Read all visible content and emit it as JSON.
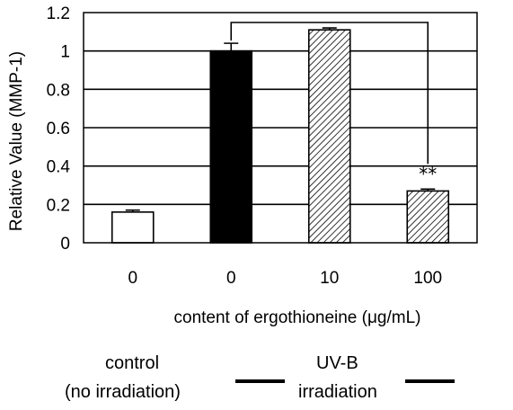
{
  "chart_data": {
    "type": "bar",
    "ylabel": "Relative Value (MMP-1)",
    "xlabel": "content of ergothioneine (μg/mL)",
    "ylim": [
      0,
      1.2
    ],
    "yticks": [
      "0",
      "0.2",
      "0.4",
      "0.6",
      "0.8",
      "1",
      "1.2"
    ],
    "grid": true,
    "categories": [
      "0",
      "0",
      "10",
      "100"
    ],
    "values": [
      0.16,
      1.0,
      1.11,
      0.27
    ],
    "errors": [
      0.01,
      0.04,
      0.01,
      0.01
    ],
    "fills": [
      "white",
      "black",
      "hatched",
      "hatched"
    ],
    "significance": {
      "bar_index": 3,
      "label": "**",
      "compared_to_index": 1
    }
  },
  "groups": {
    "control_line1": "control",
    "control_line2": "(no irradiation)",
    "uvb_line1": "UV-B",
    "uvb_line2": "irradiation"
  }
}
